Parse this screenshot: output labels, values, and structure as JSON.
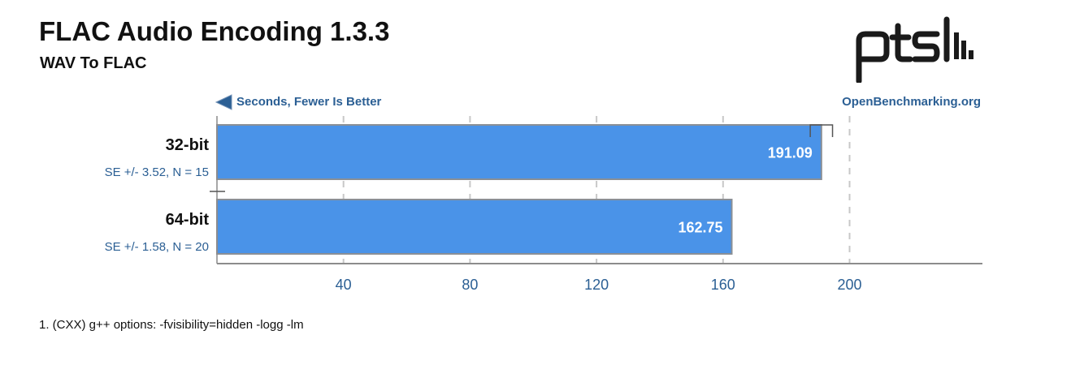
{
  "header": {
    "title": "FLAC Audio Encoding 1.3.3",
    "subtitle": "WAV To FLAC",
    "logo_text": "ptsh"
  },
  "chart_data": {
    "type": "bar",
    "orientation": "horizontal",
    "categories": [
      "32-bit",
      "64-bit"
    ],
    "values": [
      191.09,
      162.75
    ],
    "value_labels": [
      "191.09",
      "162.75"
    ],
    "errors": [
      3.52,
      1.58
    ],
    "category_notes": [
      "SE +/- 3.52, N = 15",
      "SE +/- 1.58, N = 20"
    ],
    "xlabel": "Seconds, Fewer Is Better",
    "x_ticks": [
      40,
      80,
      120,
      160,
      200
    ],
    "xlim": [
      0,
      242
    ],
    "grid": true,
    "source_label": "OpenBenchmarking.org",
    "colors": {
      "bar": "#4a93e8",
      "bar_border": "#8a8f96",
      "accent": "#2b5f94",
      "grid": "#c8c8c8",
      "axis": "#8c8c8c"
    }
  },
  "footnote": "1. (CXX) g++ options: -fvisibility=hidden -logg -lm"
}
